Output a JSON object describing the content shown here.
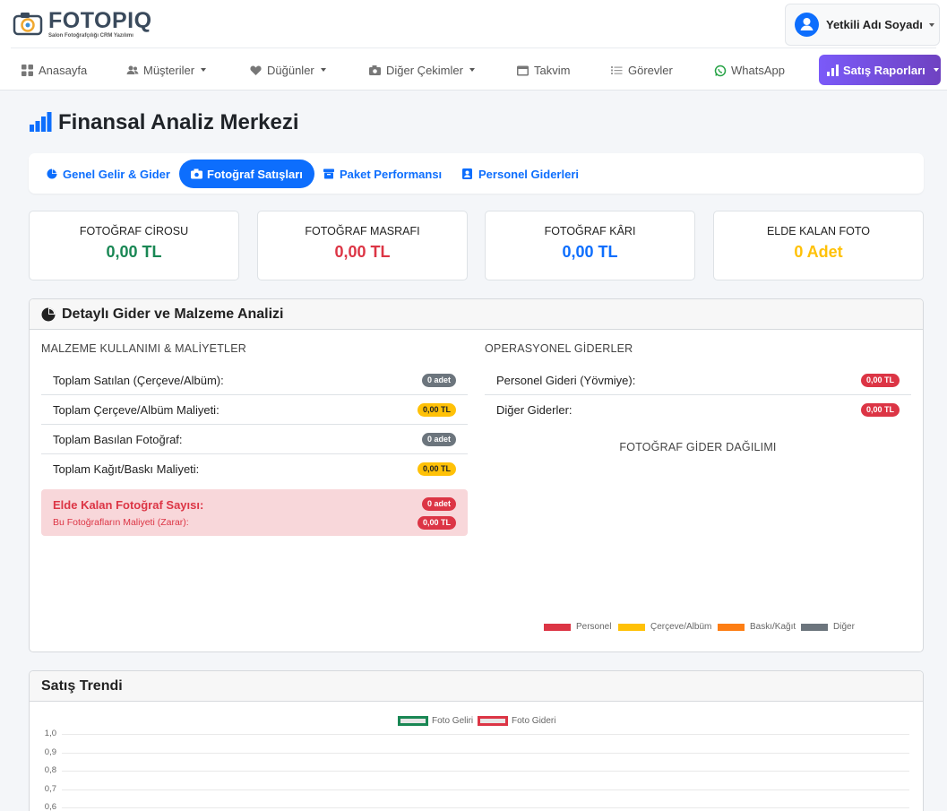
{
  "brand": {
    "name": "FOTOPIQ",
    "tagline": "Salon Fotoğrafçılığı CRM Yazılımı",
    "logo_icon": "camera-icon"
  },
  "user": {
    "name": "Yetkili Adı Soyadı",
    "avatar_icon": "user-icon"
  },
  "nav": {
    "items": [
      {
        "label": "Anasayfa",
        "icon": "grid-icon",
        "dropdown": false
      },
      {
        "label": "Müşteriler",
        "icon": "users-icon",
        "dropdown": true
      },
      {
        "label": "Düğünler",
        "icon": "heart-icon",
        "dropdown": true
      },
      {
        "label": "Diğer Çekimler",
        "icon": "camera-icon",
        "dropdown": true
      },
      {
        "label": "Takvim",
        "icon": "calendar-icon",
        "dropdown": false
      },
      {
        "label": "Görevler",
        "icon": "list-icon",
        "dropdown": false
      },
      {
        "label": "WhatsApp",
        "icon": "whatsapp-icon",
        "dropdown": false
      }
    ],
    "active": {
      "label": "Satış Raporları",
      "icon": "bar-chart-icon",
      "dropdown": true
    }
  },
  "page": {
    "title": "Finansal Analiz Merkezi",
    "title_icon": "bar-chart-icon"
  },
  "tabs": [
    {
      "label": "Genel Gelir & Gider",
      "icon": "pie-chart-icon",
      "active": false
    },
    {
      "label": "Fotoğraf Satışları",
      "icon": "camera-icon",
      "active": true
    },
    {
      "label": "Paket Performansı",
      "icon": "box-icon",
      "active": false
    },
    {
      "label": "Personel Giderleri",
      "icon": "id-badge-icon",
      "active": false
    }
  ],
  "stats": [
    {
      "label": "FOTOĞRAF CİROSU",
      "value": "0,00 TL",
      "color": "#198754"
    },
    {
      "label": "FOTOĞRAF MASRAFI",
      "value": "0,00 TL",
      "color": "#dc3545"
    },
    {
      "label": "FOTOĞRAF KÂRI",
      "value": "0,00 TL",
      "color": "#0d6efd"
    },
    {
      "label": "ELDE KALAN FOTO",
      "value": "0 Adet",
      "color": "#ffc107"
    }
  ],
  "detail": {
    "title": "Detaylı Gider ve Malzeme Analizi",
    "title_icon": "pie-chart-icon",
    "materials": {
      "title": "MALZEME KULLANIMI & MALİYETLER",
      "rows": [
        {
          "label": "Toplam Satılan (Çerçeve/Albüm):",
          "value": "0 adet"
        },
        {
          "label": "Toplam Çerçeve/Albüm Maliyeti:",
          "value": "0,00 TL"
        },
        {
          "label": "Toplam Basılan Fotoğraf:",
          "value": "0 adet"
        },
        {
          "label": "Toplam Kağıt/Baskı Maliyeti:",
          "value": "0,00 TL"
        }
      ],
      "alert": {
        "title": "Elde Kalan Fotoğraf Sayısı:",
        "title_value": "0 adet",
        "subtitle": "Bu Fotoğrafların Maliyeti (Zarar):",
        "subtitle_value": "0,00 TL"
      }
    },
    "operational": {
      "title": "OPERASYONEL GİDERLER",
      "rows": [
        {
          "label": "Personel Gideri (Yövmiye):",
          "value": "0,00 TL"
        },
        {
          "label": "Diğer Giderler:",
          "value": "0,00 TL"
        }
      ]
    },
    "chart": {
      "title": "FOTOĞRAF GİDER DAĞILIMI",
      "legend": [
        {
          "label": "Personel",
          "color": "#dc3545"
        },
        {
          "label": "Çerçeve/Albüm",
          "color": "#ffc107"
        },
        {
          "label": "Baskı/Kağıt",
          "color": "#fd7e14"
        },
        {
          "label": "Diğer",
          "color": "#6c757d"
        }
      ]
    }
  },
  "trend": {
    "title": "Satış Trendi",
    "chart_data": {
      "type": "line",
      "series": [
        {
          "name": "Foto Geliri",
          "color": "#198754",
          "values": []
        },
        {
          "name": "Foto Gideri",
          "color": "#dc3545",
          "values": []
        }
      ],
      "y_ticks": [
        "1,0",
        "0,9",
        "0,8",
        "0,7",
        "0,6"
      ],
      "ylim": [
        0,
        1
      ],
      "grid": true,
      "legend": "top-center"
    }
  }
}
